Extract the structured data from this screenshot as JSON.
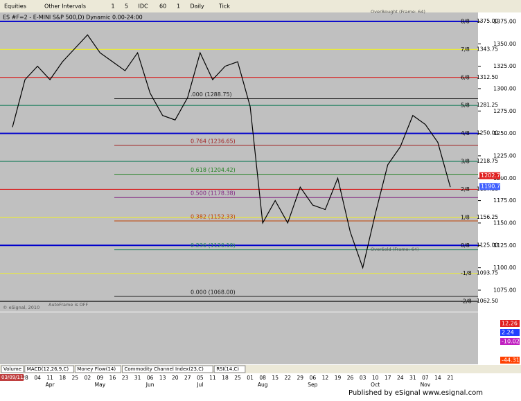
{
  "toolbar": {
    "items": [
      "Equities",
      "Other Intervals",
      "1",
      "5",
      "IDC",
      "60",
      "1",
      "Daily",
      "Tick"
    ]
  },
  "chart": {
    "title": "ES #F=2 - E-MINI S&P 500,D) Dynamic 0.00-24:00",
    "ylim": [
      1051,
      1385
    ],
    "yticks": [
      {
        "value": 1375,
        "label": "1375.00"
      },
      {
        "value": 1350,
        "label": "1350.00"
      },
      {
        "value": 1325,
        "label": "1325.00"
      },
      {
        "value": 1300,
        "label": "1300.00"
      },
      {
        "value": 1275,
        "label": "1275.00"
      },
      {
        "value": 1250,
        "label": "1250.00"
      },
      {
        "value": 1225,
        "label": "1225.00"
      },
      {
        "value": 1200,
        "label": "1200.00"
      },
      {
        "value": 1175,
        "label": "1175.00"
      },
      {
        "value": 1150,
        "label": "1150.00"
      },
      {
        "value": 1125,
        "label": "1125.00"
      },
      {
        "value": 1100,
        "label": "1100.00"
      },
      {
        "value": 1075,
        "label": "1075.00"
      }
    ],
    "murray": [
      {
        "name": "8/8",
        "value": 1375,
        "label": "1375.00",
        "color": "#0000cc"
      },
      {
        "name": "7/8",
        "value": 1343.75,
        "label": "1343.75",
        "color": "#e8e840"
      },
      {
        "name": "6/8",
        "value": 1312.5,
        "label": "1312.50",
        "color": "#d82020"
      },
      {
        "name": "5/8",
        "value": 1281.25,
        "label": "1281.25",
        "color": "#208060"
      },
      {
        "name": "4/8",
        "value": 1250,
        "label": "1250.00",
        "color": "#0000cc"
      },
      {
        "name": "3/8",
        "value": 1218.75,
        "label": "1218.75",
        "color": "#208060"
      },
      {
        "name": "2/8",
        "value": 1187.5,
        "label": "1187.50",
        "color": "#d82020"
      },
      {
        "name": "1/8",
        "value": 1156.25,
        "label": "1156.25",
        "color": "#e8e840"
      },
      {
        "name": "0/8",
        "value": 1125,
        "label": "1125.00",
        "color": "#0000cc"
      },
      {
        "name": "-1/8",
        "value": 1093.75,
        "label": "1093.75",
        "color": "#e8e840"
      },
      {
        "name": "-2/8",
        "value": 1062.5,
        "label": "1062.50",
        "color": "#202020"
      }
    ],
    "fib": [
      {
        "label": ".000 (1288.75)",
        "value": 1288.75,
        "color": "#202020"
      },
      {
        "label": "0.764 (1236.65)",
        "value": 1236.65,
        "color": "#a02020"
      },
      {
        "label": "0.618 (1204.42)",
        "value": 1204.42,
        "color": "#208020"
      },
      {
        "label": "0.500 (1178.38)",
        "value": 1178.38,
        "color": "#802080"
      },
      {
        "label": "0.382 (1152.33)",
        "value": 1152.33,
        "color": "#c04000"
      },
      {
        "label": "0.236 (1120.10)",
        "value": 1120.1,
        "color": "#208060"
      },
      {
        "label": "0.000 (1068.00)",
        "value": 1068,
        "color": "#202020"
      }
    ],
    "price_boxes": [
      {
        "label": "1202.74",
        "value": 1202.74,
        "color": "#e02020"
      },
      {
        "label": "1190.75",
        "value": 1190.75,
        "color": "#4060ff"
      }
    ],
    "price": {
      "color": "#000000",
      "values": [
        1257,
        1310,
        1325,
        1310,
        1330,
        1345,
        1360,
        1340,
        1330,
        1320,
        1340,
        1295,
        1270,
        1265,
        1290,
        1340,
        1310,
        1325,
        1330,
        1280,
        1150,
        1175,
        1150,
        1190,
        1170,
        1165,
        1200,
        1140,
        1100,
        1160,
        1215,
        1235,
        1270,
        1260,
        1240,
        1190
      ]
    },
    "annotations": [
      "OverBought (Frame: 64)",
      "OverSold (Frame: 64)",
      "AutoFrame is OFF",
      "© eSignal, 2010"
    ],
    "lower_panel_labels": [
      {
        "label": "12.26",
        "color": "#e02020"
      },
      {
        "label": "2.24",
        "color": "#2040ff"
      },
      {
        "label": "-10.02",
        "color": "#c020c0"
      },
      {
        "label": "-44.31",
        "color": "#ff4000"
      }
    ],
    "dates": [
      "21",
      "28",
      "04",
      "11",
      "18",
      "25",
      "02",
      "09",
      "16",
      "23",
      "31",
      "06",
      "13",
      "20",
      "27",
      "05",
      "11",
      "18",
      "25",
      "01",
      "08",
      "15",
      "22",
      "29",
      "06",
      "12",
      "19",
      "26",
      "03",
      "10",
      "17",
      "24",
      "31",
      "07",
      "14",
      "21"
    ],
    "months": [
      {
        "label": "Apr",
        "index": 3
      },
      {
        "label": "May",
        "index": 7
      },
      {
        "label": "Jun",
        "index": 11
      },
      {
        "label": "Jul",
        "index": 15
      },
      {
        "label": "Aug",
        "index": 20
      },
      {
        "label": "Sep",
        "index": 24
      },
      {
        "label": "Oct",
        "index": 29
      },
      {
        "label": "Nov",
        "index": 33
      }
    ],
    "date_box": "03/09/11"
  },
  "tabs": [
    "Volume",
    "MACD(12,26,9,C)",
    "Money Flow(14)",
    "Commodity Channel Index(23,C)",
    "RSI(14,C)"
  ],
  "footer": "Published by eSignal  www.esignal.com"
}
